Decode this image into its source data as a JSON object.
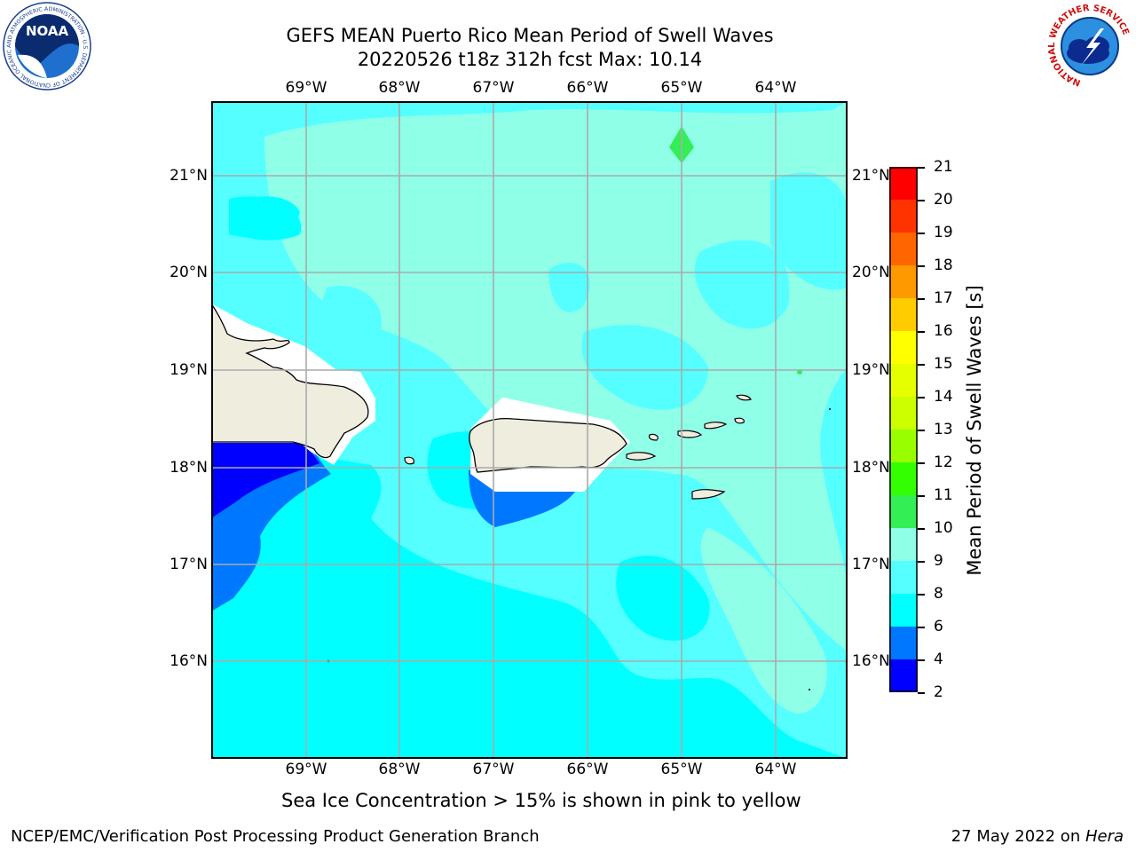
{
  "title": {
    "line1": "GEFS MEAN Puerto Rico Mean Period of Swell Waves",
    "line2": "20220526 t18z 312h fcst   Max: 10.14"
  },
  "logos": {
    "left": "NOAA",
    "left_ring": "NATIONAL OCEANIC AND ATMOSPHERIC ADMINISTRATION · U.S. DEPARTMENT OF COMMERCE",
    "right_ring": "NATIONAL WEATHER SERVICE"
  },
  "map": {
    "lon_labels": [
      "69°W",
      "68°W",
      "67°W",
      "66°W",
      "65°W",
      "64°W"
    ],
    "lat_labels": [
      "21°N",
      "20°N",
      "19°N",
      "18°N",
      "17°N",
      "16°N"
    ],
    "grid": true,
    "land_color": "#efedde",
    "field_colors": {
      "4-6": "#0077ff",
      "2-4": "#0000ff",
      "6-8": "#00ffff",
      "8-9": "#55ffff",
      "9-10": "#90ffe8",
      "10-11": "#33ee55"
    }
  },
  "colorbar": {
    "title": "Mean Period of Swell Waves [s]",
    "ticks": [
      "21",
      "20",
      "19",
      "18",
      "17",
      "16",
      "15",
      "14",
      "13",
      "12",
      "11",
      "10",
      "9",
      "8",
      "6",
      "4",
      "2"
    ],
    "colors": [
      "#ff0000",
      "#ff3300",
      "#ff6600",
      "#ff9900",
      "#ffcc00",
      "#ffff00",
      "#e5ff00",
      "#ccff00",
      "#99ff00",
      "#33ff00",
      "#33ee55",
      "#90ffe8",
      "#55ffff",
      "#00ffff",
      "#0077ff",
      "#0000ff"
    ]
  },
  "note": "Sea Ice Concentration > 15% is shown in pink to yellow",
  "footer": {
    "left": "NCEP/EMC/Verification Post Processing Product Generation Branch",
    "right_date": "27 May 2022 on ",
    "right_host": "Hera"
  }
}
